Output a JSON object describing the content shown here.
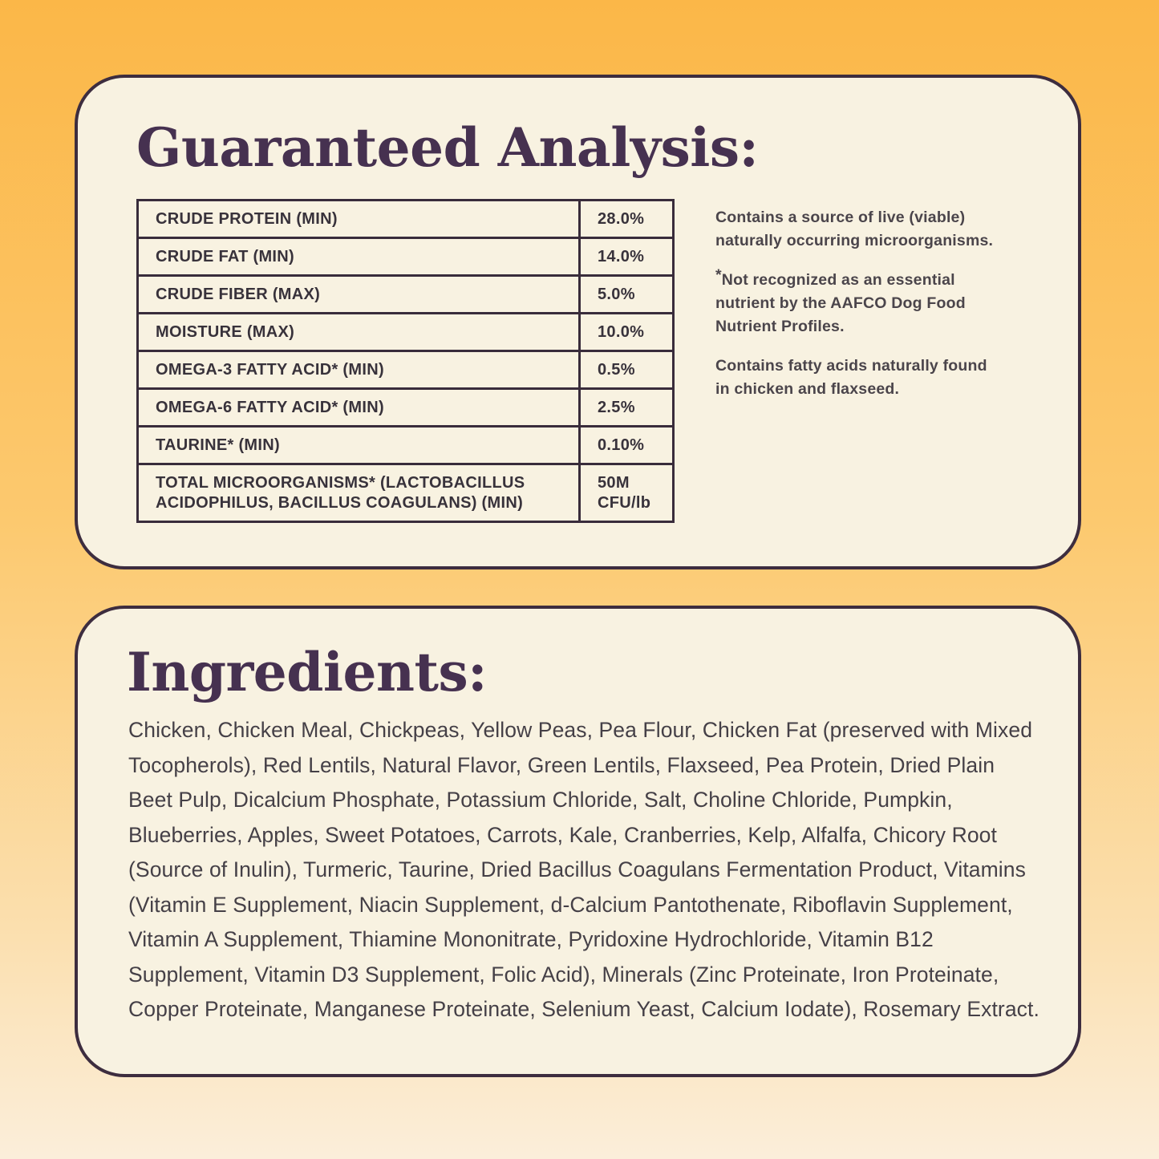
{
  "colors": {
    "background_top": "#fbb748",
    "background_bottom": "#fbeeda",
    "card_background": "#f8f2e1",
    "card_border": "#3d2d3f",
    "title_text": "#463150",
    "table_border": "#392c3b",
    "body_text": "#454047"
  },
  "guaranteed_analysis": {
    "title": "Guaranteed Analysis:",
    "table": {
      "rows": [
        {
          "label": "CRUDE PROTEIN (MIN)",
          "value": "28.0%"
        },
        {
          "label": "CRUDE FAT (MIN)",
          "value": "14.0%"
        },
        {
          "label": "CRUDE FIBER (MAX)",
          "value": "5.0%"
        },
        {
          "label": "MOISTURE (MAX)",
          "value": "10.0%"
        },
        {
          "label": "OMEGA-3 FATTY ACID* (MIN)",
          "value": "0.5%"
        },
        {
          "label": "OMEGA-6 FATTY ACID* (MIN)",
          "value": "2.5%"
        },
        {
          "label": "TAURINE* (MIN)",
          "value": "0.10%"
        },
        {
          "label": "TOTAL MICROORGANISMS* (LACTOBACILLUS ACIDOPHILUS, BACILLUS COAGULANS) (MIN)",
          "value": "50M CFU/lb"
        }
      ]
    },
    "notes": [
      {
        "text": "Contains a source of live (viable) naturally occurring microorganisms."
      },
      {
        "superscript": "*",
        "text": "Not recognized as an essential nutrient by the AAFCO Dog Food Nutrient Profiles."
      },
      {
        "text": "Contains fatty acids naturally found in chicken and flaxseed."
      }
    ]
  },
  "ingredients": {
    "title": "Ingredients:",
    "text": "Chicken, Chicken Meal, Chickpeas, Yellow Peas, Pea Flour, Chicken Fat (preserved with Mixed Tocopherols), Red Lentils, Natural Flavor, Green Lentils, Flaxseed, Pea Protein, Dried Plain Beet Pulp, Dicalcium Phosphate, Potassium Chloride, Salt, Choline Chloride, Pumpkin, Blueberries, Apples, Sweet Potatoes, Carrots, Kale, Cranberries, Kelp, Alfalfa, Chicory Root (Source of Inulin), Turmeric, Taurine, Dried Bacillus Coagulans Fermentation Product, Vitamins (Vitamin E Supplement, Niacin Supplement, d-Calcium Pantothenate, Riboflavin Supplement, Vitamin A Supplement, Thiamine Mononitrate, Pyridoxine Hydrochloride, Vitamin B12 Supplement, Vitamin D3 Supplement, Folic Acid), Minerals (Zinc Proteinate, Iron Proteinate, Copper Proteinate, Manganese Proteinate, Selenium Yeast, Calcium Iodate), Rosemary Extract."
  }
}
